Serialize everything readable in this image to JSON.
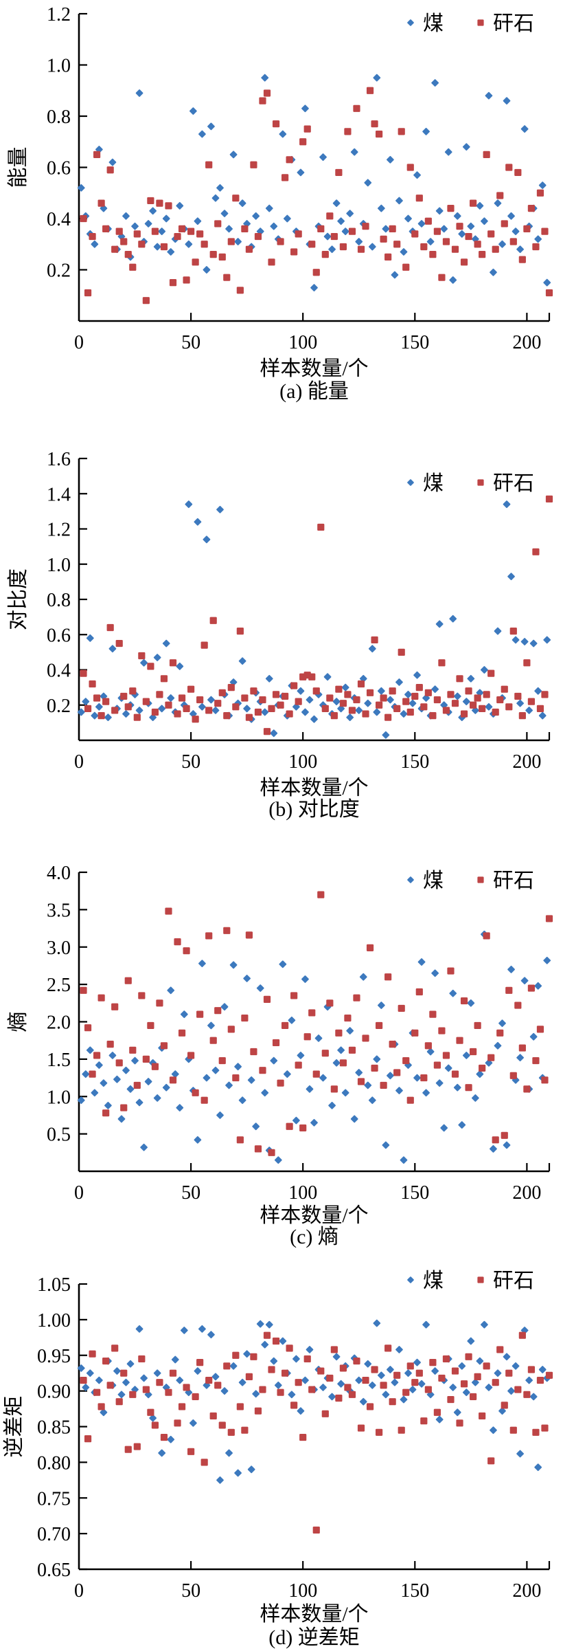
{
  "figure": {
    "xlabel": "样本数量/个",
    "legend": {
      "coal_label": "煤",
      "gangue_label": "矸石"
    },
    "colors": {
      "coal": "#3C79BE",
      "gangue": "#BE4445",
      "axis": "#000000",
      "background": "#ffffff"
    }
  },
  "chart_data": [
    {
      "id": "a",
      "type": "scatter",
      "caption": "(a) 能量",
      "ylabel": "能量",
      "xlabel": "样本数量/个",
      "xlim": [
        0,
        210
      ],
      "ylim": [
        0,
        1.2
      ],
      "xticks": [
        0,
        50,
        100,
        150,
        200
      ],
      "ytick_labels": [
        "0.2",
        "0.4",
        "0.6",
        "0.8",
        "1.0",
        "1.2"
      ],
      "grid": false,
      "legend_position": "top-right",
      "series": [
        {
          "name": "煤",
          "marker": "diamond",
          "color": "#3C79BE",
          "x_start": 1,
          "x_step": 2,
          "y": [
            0.52,
            0.41,
            0.34,
            0.3,
            0.67,
            0.44,
            0.36,
            0.62,
            0.28,
            0.33,
            0.41,
            0.25,
            0.37,
            0.89,
            0.31,
            0.38,
            0.43,
            0.29,
            0.35,
            0.4,
            0.27,
            0.32,
            0.45,
            0.36,
            0.3,
            0.82,
            0.39,
            0.73,
            0.2,
            0.76,
            0.48,
            0.52,
            0.42,
            0.36,
            0.65,
            0.31,
            0.46,
            0.38,
            0.29,
            0.41,
            0.35,
            0.95,
            0.44,
            0.37,
            0.32,
            0.73,
            0.4,
            0.63,
            0.35,
            0.58,
            0.83,
            0.3,
            0.13,
            0.37,
            0.64,
            0.33,
            0.28,
            0.46,
            0.39,
            0.35,
            0.42,
            0.66,
            0.31,
            0.38,
            0.54,
            0.29,
            0.95,
            0.44,
            0.36,
            0.63,
            0.18,
            0.47,
            0.27,
            0.4,
            0.35,
            0.57,
            0.38,
            0.74,
            0.31,
            0.93,
            0.43,
            0.36,
            0.66,
            0.16,
            0.41,
            0.34,
            0.68,
            0.37,
            0.32,
            0.45,
            0.39,
            0.88,
            0.19,
            0.46,
            0.3,
            0.86,
            0.41,
            0.35,
            0.28,
            0.75,
            0.37,
            0.44,
            0.32,
            0.53,
            0.15
          ]
        },
        {
          "name": "矸石",
          "marker": "square",
          "color": "#BE4445",
          "x_start": 2,
          "x_step": 2,
          "y": [
            0.4,
            0.11,
            0.33,
            0.65,
            0.46,
            0.36,
            0.59,
            0.28,
            0.35,
            0.31,
            0.26,
            0.21,
            0.34,
            0.3,
            0.08,
            0.47,
            0.35,
            0.46,
            0.29,
            0.45,
            0.15,
            0.33,
            0.36,
            0.16,
            0.35,
            0.23,
            0.34,
            0.3,
            0.61,
            0.26,
            0.38,
            0.25,
            0.17,
            0.31,
            0.48,
            0.12,
            0.36,
            0.28,
            0.61,
            0.33,
            0.86,
            0.89,
            0.23,
            0.77,
            0.31,
            0.56,
            0.63,
            0.27,
            0.34,
            0.7,
            0.75,
            0.3,
            0.19,
            0.36,
            0.26,
            0.41,
            0.33,
            0.58,
            0.29,
            0.74,
            0.35,
            0.83,
            0.28,
            0.37,
            0.9,
            0.77,
            0.73,
            0.32,
            0.25,
            0.36,
            0.3,
            0.74,
            0.21,
            0.6,
            0.34,
            0.48,
            0.29,
            0.39,
            0.26,
            0.35,
            0.17,
            0.31,
            0.44,
            0.28,
            0.37,
            0.23,
            0.33,
            0.46,
            0.3,
            0.26,
            0.65,
            0.34,
            0.28,
            0.49,
            0.38,
            0.6,
            0.31,
            0.58,
            0.24,
            0.36,
            0.44,
            0.29,
            0.5,
            0.35,
            0.11
          ]
        }
      ]
    },
    {
      "id": "b",
      "type": "scatter",
      "caption": "(b) 对比度",
      "ylabel": "对比度",
      "xlabel": "样本数量/个",
      "xlim": [
        0,
        210
      ],
      "ylim": [
        0,
        1.6
      ],
      "xticks": [
        0,
        50,
        100,
        150,
        200
      ],
      "ytick_labels": [
        "0.2",
        "0.4",
        "0.6",
        "0.8",
        "1.0",
        "1.2",
        "1.4",
        "1.6"
      ],
      "grid": false,
      "legend_position": "top-right",
      "series": [
        {
          "name": "煤",
          "marker": "diamond",
          "color": "#3C79BE",
          "x_start": 1,
          "x_step": 2,
          "y": [
            0.16,
            0.22,
            0.58,
            0.14,
            0.19,
            0.25,
            0.13,
            0.52,
            0.18,
            0.24,
            0.15,
            0.2,
            0.26,
            0.17,
            0.44,
            0.21,
            0.13,
            0.47,
            0.18,
            0.55,
            0.24,
            0.16,
            0.42,
            0.2,
            1.34,
            0.15,
            1.24,
            0.19,
            1.14,
            0.23,
            0.17,
            1.31,
            0.26,
            0.14,
            0.33,
            0.21,
            0.45,
            0.18,
            0.12,
            0.27,
            0.22,
            0.16,
            0.35,
            0.04,
            0.2,
            0.25,
            0.14,
            0.31,
            0.19,
            0.28,
            0.16,
            0.23,
            0.12,
            0.26,
            0.2,
            0.36,
            0.15,
            0.22,
            0.18,
            0.3,
            0.13,
            0.24,
            0.17,
            0.35,
            0.21,
            0.52,
            0.16,
            0.28,
            0.03,
            0.23,
            0.19,
            0.33,
            0.15,
            0.26,
            0.21,
            0.37,
            0.18,
            0.24,
            0.14,
            0.29,
            0.66,
            0.2,
            0.16,
            0.69,
            0.25,
            0.13,
            0.22,
            0.35,
            0.17,
            0.27,
            0.4,
            0.19,
            0.15,
            0.62,
            0.24,
            1.34,
            0.93,
            0.57,
            0.21,
            0.56,
            0.17,
            0.55,
            0.28,
            0.14,
            0.57
          ]
        },
        {
          "name": "矸石",
          "marker": "square",
          "color": "#BE4445",
          "x_start": 2,
          "x_step": 2,
          "y": [
            0.38,
            0.18,
            0.32,
            0.24,
            0.14,
            0.22,
            0.64,
            0.17,
            0.55,
            0.25,
            0.19,
            0.28,
            0.13,
            0.48,
            0.22,
            0.42,
            0.16,
            0.26,
            0.35,
            0.2,
            0.44,
            0.15,
            0.24,
            0.18,
            0.29,
            0.12,
            0.23,
            0.54,
            0.17,
            0.68,
            0.21,
            0.27,
            0.14,
            0.3,
            0.19,
            0.62,
            0.24,
            0.13,
            0.28,
            0.16,
            0.23,
            0.05,
            0.18,
            0.26,
            0.2,
            0.25,
            0.15,
            0.31,
            0.22,
            0.36,
            0.37,
            0.36,
            0.28,
            1.21,
            0.18,
            0.24,
            0.14,
            0.29,
            0.21,
            0.26,
            0.17,
            0.23,
            0.32,
            0.15,
            0.27,
            0.57,
            0.2,
            0.24,
            0.13,
            0.28,
            0.18,
            0.5,
            0.22,
            0.16,
            0.25,
            0.3,
            0.19,
            0.27,
            0.14,
            0.23,
            0.44,
            0.17,
            0.26,
            0.21,
            0.35,
            0.15,
            0.28,
            0.2,
            0.24,
            0.18,
            0.26,
            0.38,
            0.16,
            0.23,
            0.29,
            0.19,
            0.62,
            0.25,
            0.14,
            0.44,
            0.22,
            1.07,
            0.18,
            0.26,
            1.37
          ]
        }
      ]
    },
    {
      "id": "c",
      "type": "scatter",
      "caption": "(c) 熵",
      "ylabel": "熵",
      "xlabel": "样本数量/个",
      "xlim": [
        0,
        210
      ],
      "ylim": [
        0,
        4.0
      ],
      "xticks": [
        0,
        50,
        100,
        150,
        200
      ],
      "ytick_labels": [
        "0.5",
        "1.0",
        "1.5",
        "2.0",
        "2.5",
        "3.0",
        "3.5",
        "4.0"
      ],
      "grid": false,
      "legend_position": "top-right",
      "series": [
        {
          "name": "煤",
          "marker": "diamond",
          "color": "#3C79BE",
          "x_start": 1,
          "x_step": 2,
          "y": [
            0.95,
            1.3,
            1.62,
            1.05,
            1.42,
            1.18,
            0.88,
            1.55,
            1.23,
            0.7,
            1.35,
            1.1,
            1.48,
            0.92,
            0.32,
            1.2,
            1.45,
            0.98,
            1.65,
            1.12,
            2.42,
            1.3,
            0.85,
            2.1,
            1.5,
            1.08,
            0.42,
            2.78,
            1.25,
            1.95,
            1.35,
            0.75,
            2.2,
            1.15,
            2.76,
            1.4,
            0.95,
            2.58,
            1.22,
            0.6,
            2.45,
            1.05,
            0.28,
            1.48,
            0.15,
            2.77,
            1.3,
            2.02,
            0.68,
            1.55,
            2.57,
            1.1,
            0.65,
            1.78,
            1.25,
            2.2,
            0.88,
            1.45,
            1.62,
            1.05,
            1.88,
            0.7,
            1.32,
            2.6,
            1.15,
            0.95,
            1.5,
            2.22,
            0.35,
            1.28,
            1.7,
            1.08,
            0.15,
            1.42,
            1.85,
            1.25,
            2.8,
            1.05,
            1.6,
            2.65,
            1.18,
            0.58,
            1.38,
            2.38,
            1.12,
            0.62,
            1.55,
            2.25,
            0.98,
            1.3,
            3.17,
            1.45,
            0.3,
            1.68,
            1.98,
            0.35,
            2.7,
            1.22,
            1.52,
            2.55,
            1.1,
            1.8,
            2.48,
            1.25,
            2.82
          ]
        },
        {
          "name": "矸石",
          "marker": "square",
          "color": "#BE4445",
          "x_start": 2,
          "x_step": 2,
          "y": [
            2.42,
            1.92,
            1.3,
            1.55,
            2.32,
            0.78,
            1.7,
            2.2,
            1.45,
            0.85,
            2.55,
            1.62,
            1.15,
            2.35,
            1.5,
            1.95,
            1.4,
            2.25,
            1.68,
            3.48,
            1.22,
            3.07,
            1.85,
            2.95,
            1.55,
            1.05,
            2.1,
            0.95,
            3.15,
            1.75,
            2.15,
            1.48,
            3.22,
            1.9,
            1.25,
            0.42,
            2.05,
            3.16,
            1.6,
            0.3,
            1.35,
            2.3,
            0.25,
            1.72,
            1.18,
            1.95,
            0.6,
            2.35,
            1.42,
            0.58,
            1.8,
            2.12,
            1.3,
            3.7,
            1.58,
            2.25,
            1.1,
            1.85,
            1.45,
            2.05,
            1.62,
            2.32,
            1.2,
            1.78,
            2.99,
            1.38,
            1.95,
            1.15,
            2.6,
            1.7,
            1.32,
            2.18,
            1.48,
            0.95,
            1.85,
            2.4,
            1.25,
            1.68,
            2.1,
            1.42,
            1.88,
            1.55,
            2.68,
            1.3,
            1.75,
            2.28,
            1.12,
            1.6,
            1.95,
            1.38,
            3.15,
            1.52,
            0.42,
            1.85,
            0.48,
            2.42,
            1.28,
            2.22,
            1.65,
            1.1,
            2.45,
            1.48,
            1.9,
            1.22,
            3.38
          ]
        }
      ]
    },
    {
      "id": "d",
      "type": "scatter",
      "caption": "(d) 逆差矩",
      "ylabel": "逆差矩",
      "xlabel": "样本数量/个",
      "xlim": [
        0,
        210
      ],
      "ylim": [
        0.65,
        1.05
      ],
      "xticks": [
        0,
        50,
        100,
        150,
        200
      ],
      "ytick_labels": [
        "0.65",
        "0.70",
        "0.75",
        "0.80",
        "0.85",
        "0.90",
        "0.95",
        "1.00",
        "1.05"
      ],
      "grid": false,
      "legend_position": "top-right",
      "series": [
        {
          "name": "煤",
          "marker": "diamond",
          "color": "#3C79BE",
          "x_start": 1,
          "x_step": 2,
          "y": [
            0.932,
            0.905,
            0.925,
            0.898,
            0.915,
            0.87,
            0.942,
            0.908,
            0.928,
            0.895,
            0.912,
            0.938,
            0.902,
            0.987,
            0.918,
            0.895,
            0.862,
            0.925,
            0.813,
            0.905,
            0.832,
            0.944,
            0.915,
            0.985,
            0.898,
            0.855,
            0.928,
            0.987,
            0.908,
            0.979,
            0.92,
            0.775,
            0.9,
            0.813,
            0.935,
            0.785,
            0.912,
            0.952,
            0.79,
            0.896,
            0.994,
            0.965,
            0.993,
            0.942,
            0.908,
            0.97,
            0.925,
            0.895,
            0.945,
            0.872,
            0.915,
            0.958,
            0.902,
            0.93,
            0.905,
            0.918,
            0.892,
            0.948,
            0.91,
            0.935,
            0.9,
            0.946,
            0.915,
            0.885,
            0.938,
            0.908,
            0.995,
            0.922,
            0.895,
            0.93,
            0.912,
            0.958,
            0.888,
            0.925,
            0.902,
            0.94,
            0.91,
            0.993,
            0.895,
            0.928,
            0.86,
            0.915,
            0.945,
            0.905,
            0.87,
            0.935,
            0.898,
            0.97,
            0.912,
            0.942,
            0.993,
            0.905,
            0.845,
            0.925,
            0.872,
            0.948,
            0.9,
            0.935,
            0.812,
            0.985,
            0.915,
            0.892,
            0.793,
            0.93,
            0.918
          ]
        },
        {
          "name": "矸石",
          "marker": "square",
          "color": "#BE4445",
          "x_start": 2,
          "x_step": 2,
          "y": [
            0.915,
            0.833,
            0.952,
            0.898,
            0.878,
            0.942,
            0.908,
            0.96,
            0.885,
            0.925,
            0.818,
            0.895,
            0.822,
            0.945,
            0.902,
            0.87,
            0.852,
            0.912,
            0.835,
            0.898,
            0.925,
            0.855,
            0.878,
            0.905,
            0.815,
            0.892,
            0.94,
            0.8,
            0.915,
            0.865,
            0.908,
            0.852,
            0.935,
            0.842,
            0.95,
            0.878,
            0.845,
            0.92,
            0.948,
            0.872,
            0.902,
            0.978,
            0.93,
            0.97,
            0.898,
            0.925,
            0.96,
            0.88,
            0.912,
            0.835,
            0.945,
            0.902,
            0.705,
            0.928,
            0.868,
            0.918,
            0.958,
            0.89,
            0.932,
            0.905,
            0.895,
            0.942,
            0.848,
            0.915,
            0.878,
            0.93,
            0.842,
            0.908,
            0.96,
            0.885,
            0.922,
            0.845,
            0.898,
            0.935,
            0.912,
            0.925,
            0.858,
            0.902,
            0.94,
            0.87,
            0.918,
            0.945,
            0.888,
            0.928,
            0.855,
            0.91,
            0.948,
            0.892,
            0.92,
            0.865,
            0.935,
            0.802,
            0.912,
            0.958,
            0.88,
            0.925,
            0.845,
            0.902,
            0.978,
            0.895,
            0.93,
            0.842,
            0.915,
            0.848,
            0.922
          ]
        }
      ]
    }
  ]
}
